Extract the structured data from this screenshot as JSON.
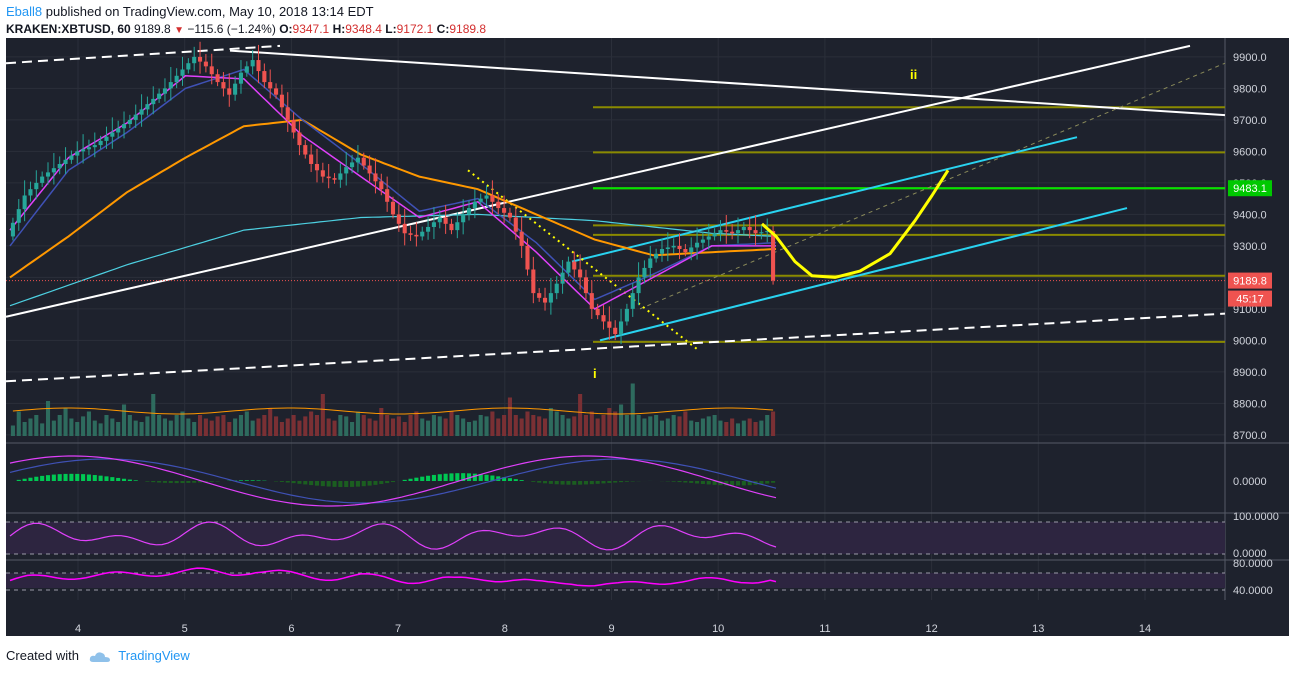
{
  "header": {
    "author": "Eball8",
    "published_text": "published on TradingView.com, May 10, 2018 13:14 EDT",
    "symbol": "KRAKEN:XBTUSD, 60",
    "last": "9189.8",
    "change": "−115.6 (−1.24%)",
    "o_label": "O:",
    "o_value": "9347.1",
    "h_label": "H:",
    "h_value": "9348.4",
    "l_label": "L:",
    "l_value": "9172.1",
    "c_label": "C:",
    "c_value": "9189.8"
  },
  "footer": {
    "created_with": "Created with",
    "brand": "TradingView"
  },
  "colors": {
    "background": "#1e222d",
    "grid": "#2b2f3a",
    "up": "#26a69a",
    "down": "#ef5350",
    "ema_orange": "#ff9800",
    "ma_teal": "#4dd0e1",
    "ma_magenta": "#e040fb",
    "ma_blue": "#3f51b5",
    "fib": "#8a8a00",
    "cyan_channel": "#29d3f0",
    "projection": "#ffff00",
    "target": "#00e600"
  },
  "chart_data": {
    "type": "candlestick",
    "x_tick_labels": [
      "4",
      "5",
      "6",
      "7",
      "8",
      "9",
      "10",
      "11",
      "12",
      "13",
      "14"
    ],
    "y_tick_labels": [
      "9900.0",
      "9800.0",
      "9700.0",
      "9600.0",
      "9500.0",
      "9400.0",
      "9300.0",
      "9200.0",
      "9100.0",
      "9000.0",
      "8900.0",
      "8800.0",
      "8700.0"
    ],
    "ylim": [
      8690,
      9960
    ],
    "last_price_label": "9189.8",
    "countdown_label": "45:17",
    "target_label": "9483.1",
    "target_price": 9483.1,
    "fib_levels": [
      9740,
      9597,
      9483,
      9365,
      9335,
      9205,
      8995
    ],
    "wave_labels": [
      "i",
      "ii"
    ],
    "price_path": [
      [
        0,
        9330
      ],
      [
        3,
        9460
      ],
      [
        6,
        9520
      ],
      [
        9,
        9560
      ],
      [
        12,
        9600
      ],
      [
        15,
        9620
      ],
      [
        18,
        9660
      ],
      [
        21,
        9700
      ],
      [
        24,
        9750
      ],
      [
        27,
        9800
      ],
      [
        30,
        9860
      ],
      [
        32,
        9900
      ],
      [
        34,
        9870
      ],
      [
        36,
        9820
      ],
      [
        38,
        9780
      ],
      [
        40,
        9850
      ],
      [
        42,
        9890
      ],
      [
        44,
        9820
      ],
      [
        46,
        9780
      ],
      [
        48,
        9700
      ],
      [
        50,
        9620
      ],
      [
        52,
        9560
      ],
      [
        54,
        9520
      ],
      [
        56,
        9510
      ],
      [
        58,
        9550
      ],
      [
        60,
        9580
      ],
      [
        62,
        9530
      ],
      [
        64,
        9480
      ],
      [
        66,
        9400
      ],
      [
        68,
        9340
      ],
      [
        70,
        9330
      ],
      [
        72,
        9360
      ],
      [
        74,
        9390
      ],
      [
        76,
        9350
      ],
      [
        78,
        9400
      ],
      [
        80,
        9440
      ],
      [
        82,
        9460
      ],
      [
        84,
        9420
      ],
      [
        86,
        9390
      ],
      [
        88,
        9300
      ],
      [
        90,
        9150
      ],
      [
        92,
        9120
      ],
      [
        94,
        9180
      ],
      [
        96,
        9250
      ],
      [
        98,
        9200
      ],
      [
        100,
        9100
      ],
      [
        102,
        9060
      ],
      [
        104,
        9020
      ],
      [
        106,
        9100
      ],
      [
        108,
        9200
      ],
      [
        110,
        9260
      ],
      [
        112,
        9290
      ],
      [
        114,
        9300
      ],
      [
        116,
        9280
      ],
      [
        118,
        9310
      ],
      [
        120,
        9330
      ],
      [
        122,
        9350
      ],
      [
        124,
        9340
      ],
      [
        126,
        9360
      ],
      [
        128,
        9340
      ],
      [
        130,
        9347
      ],
      [
        131,
        9189.8
      ]
    ],
    "ema_orange_path": [
      [
        0,
        9200
      ],
      [
        10,
        9330
      ],
      [
        20,
        9470
      ],
      [
        30,
        9580
      ],
      [
        40,
        9680
      ],
      [
        50,
        9700
      ],
      [
        60,
        9590
      ],
      [
        70,
        9520
      ],
      [
        80,
        9480
      ],
      [
        90,
        9400
      ],
      [
        100,
        9320
      ],
      [
        110,
        9270
      ],
      [
        120,
        9280
      ],
      [
        131,
        9290
      ]
    ],
    "ma_teal_path": [
      [
        0,
        9110
      ],
      [
        20,
        9240
      ],
      [
        40,
        9350
      ],
      [
        60,
        9390
      ],
      [
        80,
        9400
      ],
      [
        100,
        9380
      ],
      [
        120,
        9340
      ],
      [
        131,
        9330
      ]
    ],
    "ma_magenta_path": [
      [
        0,
        9350
      ],
      [
        10,
        9580
      ],
      [
        20,
        9690
      ],
      [
        30,
        9840
      ],
      [
        40,
        9830
      ],
      [
        50,
        9650
      ],
      [
        60,
        9520
      ],
      [
        70,
        9390
      ],
      [
        80,
        9440
      ],
      [
        90,
        9280
      ],
      [
        100,
        9100
      ],
      [
        110,
        9200
      ],
      [
        120,
        9300
      ],
      [
        131,
        9300
      ]
    ],
    "ma_blue_path": [
      [
        0,
        9300
      ],
      [
        10,
        9540
      ],
      [
        20,
        9660
      ],
      [
        30,
        9800
      ],
      [
        40,
        9860
      ],
      [
        50,
        9700
      ],
      [
        60,
        9560
      ],
      [
        70,
        9410
      ],
      [
        80,
        9450
      ],
      [
        90,
        9310
      ],
      [
        100,
        9130
      ],
      [
        110,
        9210
      ],
      [
        120,
        9300
      ],
      [
        131,
        9310
      ]
    ],
    "volume": [
      0.15,
      0.35,
      0.2,
      0.25,
      0.3,
      0.18,
      0.5,
      0.22,
      0.3,
      0.4,
      0.25,
      0.2,
      0.28,
      0.35,
      0.22,
      0.18,
      0.3,
      0.25,
      0.2,
      0.45,
      0.3,
      0.22,
      0.2,
      0.28,
      0.6,
      0.3,
      0.25,
      0.22,
      0.3,
      0.35,
      0.25,
      0.2,
      0.3,
      0.25,
      0.22,
      0.28,
      0.3,
      0.2,
      0.25,
      0.3,
      0.35,
      0.22,
      0.25,
      0.3,
      0.4,
      0.28,
      0.2,
      0.25,
      0.3,
      0.22,
      0.28,
      0.35,
      0.3,
      0.6,
      0.25,
      0.22,
      0.3,
      0.28,
      0.2,
      0.35,
      0.3,
      0.25,
      0.22,
      0.4,
      0.3,
      0.25,
      0.28,
      0.2,
      0.3,
      0.35,
      0.25,
      0.22,
      0.3,
      0.28,
      0.25,
      0.35,
      0.3,
      0.25,
      0.2,
      0.22,
      0.3,
      0.28,
      0.35,
      0.25,
      0.3,
      0.55,
      0.3,
      0.25,
      0.35,
      0.3,
      0.28,
      0.25,
      0.4,
      0.35,
      0.3,
      0.25,
      0.28,
      0.6,
      0.3,
      0.35,
      0.25,
      0.3,
      0.4,
      0.35,
      0.45,
      0.3,
      0.75,
      0.3,
      0.25,
      0.28,
      0.3,
      0.22,
      0.25,
      0.3,
      0.28,
      0.35,
      0.22,
      0.2,
      0.25,
      0.28,
      0.3,
      0.22,
      0.2,
      0.25,
      0.18,
      0.22,
      0.25,
      0.2,
      0.22,
      0.3,
      0.35
    ],
    "macd_label": "0.0000",
    "stoch_labels": [
      "100.0000",
      "0.0000"
    ],
    "rsi_labels": [
      "80.0000",
      "40.0000"
    ]
  }
}
